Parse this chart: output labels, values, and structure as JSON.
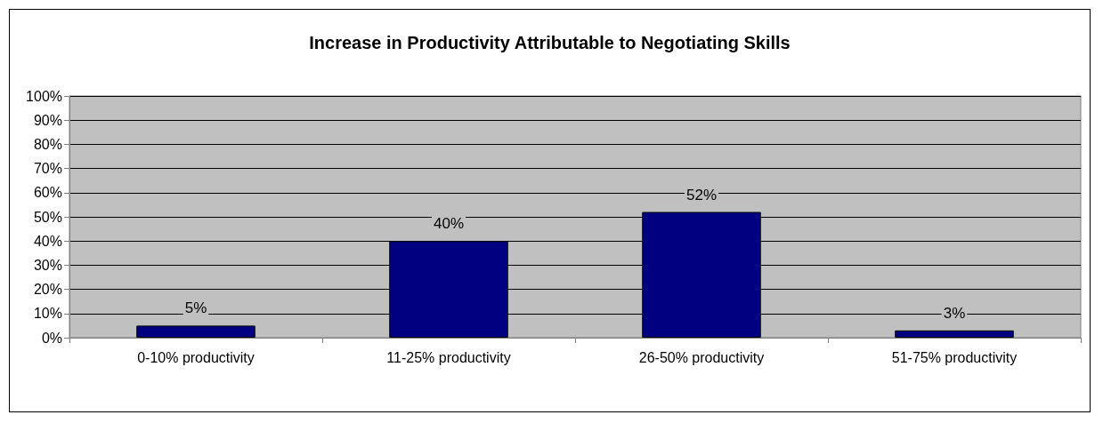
{
  "chart_data": {
    "type": "bar",
    "title": "Increase in Productivity Attributable to Negotiating Skills",
    "categories": [
      "0-10% productivity",
      "11-25% productivity",
      "26-50% productivity",
      "51-75% productivity"
    ],
    "values": [
      5,
      40,
      52,
      3
    ],
    "color": "#000080",
    "value_labels": [
      "5%",
      "40%",
      "52%",
      "3%"
    ],
    "ylim": [
      0,
      100
    ],
    "yticks": [
      {
        "value": 0,
        "label": "0%"
      },
      {
        "value": 10,
        "label": "10%"
      },
      {
        "value": 20,
        "label": "20%"
      },
      {
        "value": 30,
        "label": "30%"
      },
      {
        "value": 40,
        "label": "40%"
      },
      {
        "value": 50,
        "label": "50%"
      },
      {
        "value": 60,
        "label": "60%"
      },
      {
        "value": 70,
        "label": "70%"
      },
      {
        "value": 80,
        "label": "80%"
      },
      {
        "value": 90,
        "label": "90%"
      },
      {
        "value": 100,
        "label": "100%"
      }
    ],
    "grid": "y"
  }
}
